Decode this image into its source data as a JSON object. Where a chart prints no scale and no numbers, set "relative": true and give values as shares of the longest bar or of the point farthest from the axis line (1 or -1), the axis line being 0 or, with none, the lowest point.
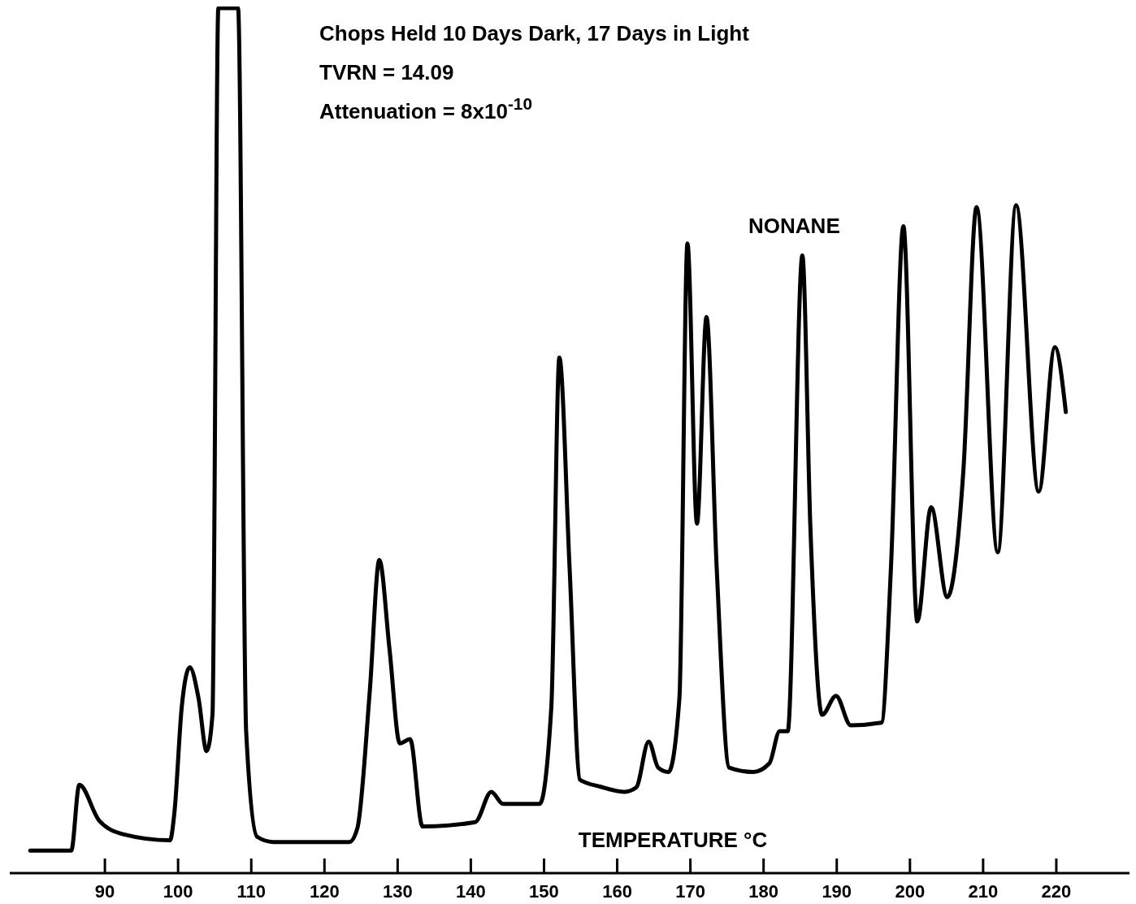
{
  "chart_data": {
    "type": "line",
    "title": "Chops Held 10 Days Dark, 17 Days in Light",
    "xlabel": "TEMPERATURE °C",
    "relative": true,
    "color": "#000000",
    "annotations": [
      "TVRN = 14.09",
      "Attenuation = 8x10$^{-10}$",
      {
        "text": "NONANE",
        "x": 185.3,
        "y": 0.714
      }
    ],
    "xlim": [
      77,
      230
    ],
    "xticks": [
      90,
      100,
      110,
      120,
      130,
      140,
      150,
      160,
      170,
      180,
      190,
      200,
      210,
      220
    ],
    "x": [
      79.8,
      85.4,
      86.5,
      89.2,
      92.5,
      98.9,
      99.5,
      100.5,
      101.6,
      102.8,
      103.9,
      104.7,
      105.5,
      108.2,
      109.3,
      110.8,
      113.0,
      123.4,
      124.5,
      126.2,
      127.5,
      128.9,
      130.3,
      131.7,
      133.4,
      140.6,
      142.8,
      144.4,
      149.4,
      151.0,
      152.1,
      153.5,
      154.9,
      157.7,
      161.0,
      162.6,
      164.3,
      165.6,
      167.0,
      168.5,
      169.6,
      170.9,
      172.2,
      173.6,
      175.3,
      178.6,
      180.8,
      182.2,
      183.3,
      185.3,
      186.4,
      188.0,
      189.9,
      191.9,
      196.1,
      197.4,
      199.1,
      201.0,
      202.9,
      205.1,
      207.3,
      209.1,
      212.0,
      214.5,
      217.6,
      219.8,
      221.3
    ],
    "values": [
      0.026,
      0.026,
      0.102,
      0.061,
      0.045,
      0.038,
      0.07,
      0.192,
      0.238,
      0.202,
      0.141,
      0.183,
      1,
      1,
      0.164,
      0.042,
      0.036,
      0.036,
      0.052,
      0.211,
      0.362,
      0.258,
      0.15,
      0.155,
      0.054,
      0.059,
      0.094,
      0.08,
      0.08,
      0.192,
      0.596,
      0.352,
      0.108,
      0.1,
      0.094,
      0.099,
      0.152,
      0.122,
      0.117,
      0.202,
      0.728,
      0.404,
      0.643,
      0.352,
      0.122,
      0.117,
      0.127,
      0.164,
      0.164,
      0.714,
      0.399,
      0.183,
      0.205,
      0.171,
      0.174,
      0.352,
      0.748,
      0.291,
      0.423,
      0.319,
      0.465,
      0.77,
      0.371,
      0.772,
      0.441,
      0.608,
      0.533
    ]
  }
}
